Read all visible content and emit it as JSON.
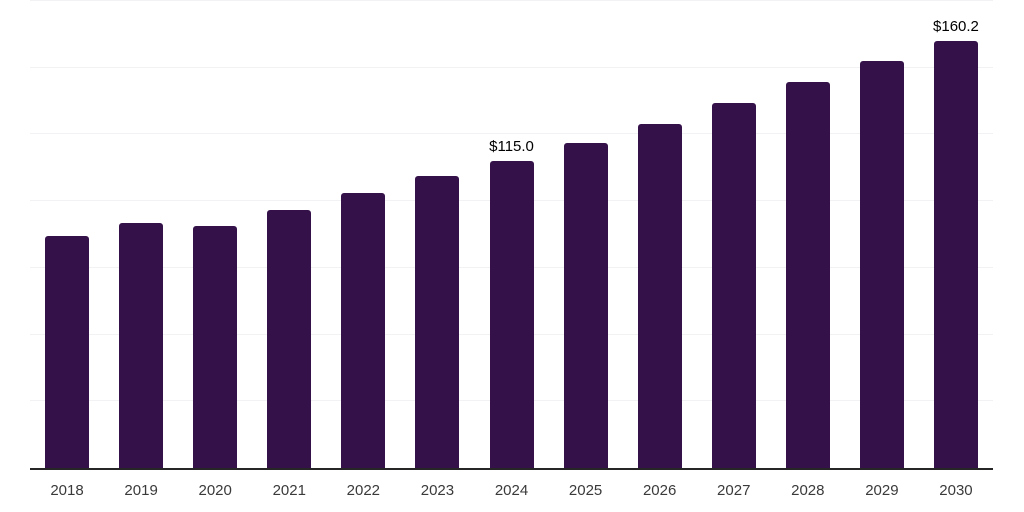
{
  "chart_data": {
    "type": "bar",
    "categories": [
      "2018",
      "2019",
      "2020",
      "2021",
      "2022",
      "2023",
      "2024",
      "2025",
      "2026",
      "2027",
      "2028",
      "2029",
      "2030"
    ],
    "values": [
      86.8,
      92.0,
      90.8,
      96.8,
      103.0,
      109.4,
      115.0,
      121.9,
      129.0,
      136.6,
      144.5,
      152.4,
      160.2
    ],
    "value_prefix": "$",
    "annotations": [
      {
        "category": "2024",
        "text": "$115.0"
      },
      {
        "category": "2030",
        "text": "$160.2"
      }
    ],
    "title": "",
    "xlabel": "",
    "ylabel": "",
    "ylim": [
      0,
      175
    ],
    "gridline_step": 25,
    "grid": "horizontal",
    "legend": "none",
    "colors": {
      "bar": "#35114a",
      "gridline": "#f2f2f4",
      "axis_line": "#262626",
      "value_label": "#000000",
      "tick_label": "#3a3a3a",
      "background": "#ffffff"
    }
  }
}
